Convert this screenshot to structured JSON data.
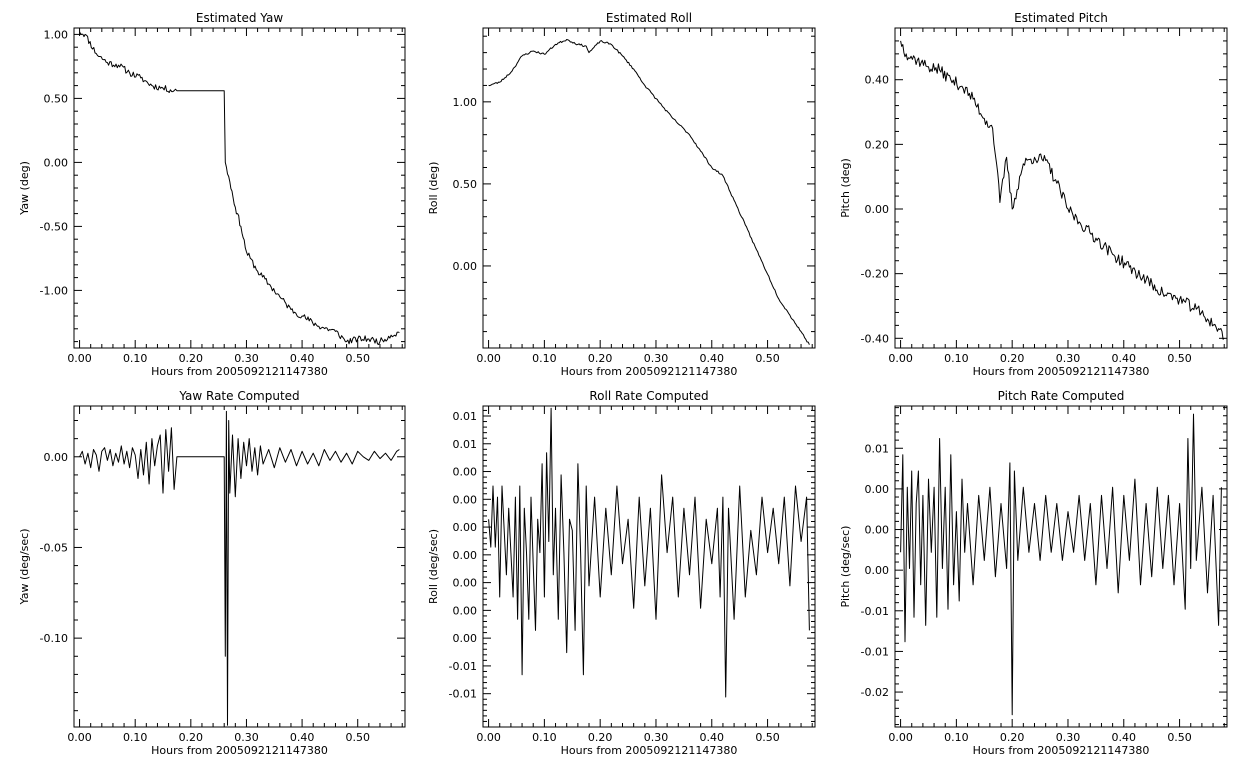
{
  "chart_data": [
    {
      "type": "line",
      "title": "Estimated Yaw",
      "xlabel": "Hours from 2005092121147380",
      "ylabel": "Yaw (deg)",
      "xlim": [
        -0.01,
        0.585
      ],
      "ylim": [
        -1.45,
        1.05
      ],
      "xticks": [
        0.0,
        0.1,
        0.2,
        0.3,
        0.4,
        0.5
      ],
      "xtick_labels": [
        "0.00",
        "0.10",
        "0.20",
        "0.30",
        "0.40",
        "0.50"
      ],
      "yticks": [
        1.0,
        0.5,
        0.0,
        -0.5,
        -1.0
      ],
      "ytick_labels": [
        "1.00",
        "0.50",
        "0.00",
        "-0.50",
        "-1.00"
      ],
      "noise": 0.025,
      "seed": 11,
      "series": [
        {
          "x": [
            0.0,
            0.01,
            0.03,
            0.05,
            0.07,
            0.09,
            0.11,
            0.13,
            0.15,
            0.17,
            0.175,
            0.26,
            0.262,
            0.27,
            0.28,
            0.29,
            0.3,
            0.32,
            0.34,
            0.36,
            0.38,
            0.4,
            0.43,
            0.46,
            0.48,
            0.5,
            0.52,
            0.54,
            0.56,
            0.575
          ],
          "y": [
            1.02,
            1.0,
            0.85,
            0.78,
            0.76,
            0.7,
            0.66,
            0.6,
            0.58,
            0.56,
            0.56,
            0.56,
            0.0,
            -0.15,
            -0.35,
            -0.5,
            -0.7,
            -0.85,
            -0.95,
            -1.05,
            -1.15,
            -1.2,
            -1.28,
            -1.32,
            -1.4,
            -1.38,
            -1.38,
            -1.4,
            -1.35,
            -1.33
          ]
        }
      ]
    },
    {
      "type": "line",
      "title": "Estimated Roll",
      "xlabel": "Hours from 2005092121147380",
      "ylabel": "Roll (deg)",
      "xlim": [
        -0.01,
        0.585
      ],
      "ylim": [
        -0.5,
        1.45
      ],
      "xticks": [
        0.0,
        0.1,
        0.2,
        0.3,
        0.4,
        0.5
      ],
      "xtick_labels": [
        "0.00",
        "0.10",
        "0.20",
        "0.30",
        "0.40",
        "0.50"
      ],
      "yticks": [
        1.0,
        0.5,
        0.0
      ],
      "ytick_labels": [
        "1.00",
        "0.50",
        "0.00"
      ],
      "noise": 0.006,
      "seed": 23,
      "series": [
        {
          "x": [
            0.0,
            0.02,
            0.04,
            0.06,
            0.08,
            0.1,
            0.12,
            0.14,
            0.16,
            0.175,
            0.18,
            0.2,
            0.22,
            0.24,
            0.26,
            0.28,
            0.3,
            0.33,
            0.36,
            0.38,
            0.4,
            0.42,
            0.44,
            0.46,
            0.48,
            0.5,
            0.52,
            0.54,
            0.56,
            0.575
          ],
          "y": [
            1.1,
            1.12,
            1.18,
            1.28,
            1.31,
            1.29,
            1.35,
            1.38,
            1.35,
            1.34,
            1.3,
            1.37,
            1.35,
            1.28,
            1.2,
            1.1,
            1.02,
            0.9,
            0.8,
            0.7,
            0.6,
            0.55,
            0.4,
            0.25,
            0.1,
            -0.05,
            -0.2,
            -0.3,
            -0.4,
            -0.48
          ]
        }
      ]
    },
    {
      "type": "line",
      "title": "Estimated Pitch",
      "xlabel": "Hours from 2005092121147380",
      "ylabel": "Pitch (deg)",
      "xlim": [
        -0.01,
        0.585
      ],
      "ylim": [
        -0.43,
        0.56
      ],
      "xticks": [
        0.0,
        0.1,
        0.2,
        0.3,
        0.4,
        0.5
      ],
      "xtick_labels": [
        "0.00",
        "0.10",
        "0.20",
        "0.30",
        "0.40",
        "0.50"
      ],
      "yticks": [
        0.4,
        0.2,
        0.0,
        -0.2,
        -0.4
      ],
      "ytick_labels": [
        "0.40",
        "0.20",
        "0.00",
        "-0.20",
        "-0.40"
      ],
      "noise": 0.018,
      "seed": 37,
      "series": [
        {
          "x": [
            0.0,
            0.01,
            0.03,
            0.05,
            0.07,
            0.09,
            0.11,
            0.13,
            0.15,
            0.165,
            0.172,
            0.178,
            0.19,
            0.2,
            0.22,
            0.24,
            0.26,
            0.28,
            0.3,
            0.32,
            0.35,
            0.38,
            0.41,
            0.44,
            0.47,
            0.5,
            0.53,
            0.55,
            0.57,
            0.58
          ],
          "y": [
            0.52,
            0.48,
            0.46,
            0.44,
            0.43,
            0.4,
            0.38,
            0.34,
            0.28,
            0.25,
            0.14,
            0.02,
            0.16,
            0.0,
            0.14,
            0.16,
            0.15,
            0.08,
            0.0,
            -0.04,
            -0.09,
            -0.14,
            -0.18,
            -0.22,
            -0.26,
            -0.28,
            -0.31,
            -0.34,
            -0.37,
            -0.4
          ]
        }
      ]
    },
    {
      "type": "line",
      "title": "Yaw Rate Computed",
      "xlabel": "Hours from 2005092121147380",
      "ylabel": "Yaw (deg/sec)",
      "xlim": [
        -0.01,
        0.585
      ],
      "ylim": [
        -0.149,
        0.028
      ],
      "xticks": [
        0.0,
        0.1,
        0.2,
        0.3,
        0.4,
        0.5
      ],
      "xtick_labels": [
        "0.00",
        "0.10",
        "0.20",
        "0.30",
        "0.40",
        "0.50"
      ],
      "yticks": [
        0.0,
        -0.05,
        -0.1
      ],
      "ytick_labels": [
        "0.00",
        "-0.05",
        "-0.10"
      ],
      "noise": 0.0,
      "seed": 41,
      "series": [
        {
          "x": [
            0.0,
            0.005,
            0.01,
            0.015,
            0.02,
            0.025,
            0.03,
            0.035,
            0.04,
            0.045,
            0.05,
            0.055,
            0.06,
            0.065,
            0.07,
            0.075,
            0.08,
            0.085,
            0.09,
            0.095,
            0.1,
            0.105,
            0.11,
            0.115,
            0.12,
            0.125,
            0.13,
            0.135,
            0.14,
            0.145,
            0.15,
            0.155,
            0.16,
            0.165,
            0.17,
            0.175,
            0.26,
            0.262,
            0.264,
            0.266,
            0.268,
            0.27,
            0.275,
            0.28,
            0.285,
            0.29,
            0.295,
            0.3,
            0.305,
            0.31,
            0.315,
            0.32,
            0.325,
            0.33,
            0.34,
            0.35,
            0.36,
            0.37,
            0.38,
            0.39,
            0.4,
            0.41,
            0.42,
            0.43,
            0.44,
            0.45,
            0.46,
            0.47,
            0.48,
            0.49,
            0.5,
            0.51,
            0.52,
            0.53,
            0.54,
            0.55,
            0.56,
            0.57,
            0.575
          ],
          "y": [
            0.0,
            0.003,
            -0.004,
            0.002,
            -0.006,
            0.004,
            0.001,
            -0.008,
            0.003,
            0.005,
            -0.002,
            0.004,
            -0.005,
            0.002,
            -0.003,
            0.006,
            -0.004,
            0.003,
            -0.006,
            0.005,
            0.001,
            -0.012,
            0.004,
            -0.01,
            0.008,
            -0.015,
            0.01,
            -0.005,
            0.006,
            0.012,
            -0.02,
            0.015,
            -0.008,
            0.016,
            -0.018,
            0.0,
            0.0,
            -0.11,
            0.025,
            -0.148,
            0.02,
            -0.02,
            0.012,
            -0.022,
            0.01,
            -0.012,
            0.008,
            -0.005,
            0.01,
            -0.008,
            0.005,
            -0.01,
            0.006,
            -0.004,
            0.004,
            -0.006,
            0.005,
            -0.003,
            0.004,
            -0.005,
            0.003,
            -0.004,
            0.002,
            -0.005,
            0.004,
            -0.002,
            0.003,
            -0.003,
            0.002,
            -0.004,
            0.003,
            0.0,
            -0.002,
            0.003,
            -0.001,
            0.002,
            -0.002,
            0.003,
            0.004
          ]
        }
      ]
    },
    {
      "type": "line",
      "title": "Roll Rate Computed",
      "xlabel": "Hours from 2005092121147380",
      "ylabel": "Roll (deg/sec)",
      "xlim": [
        -0.01,
        0.585
      ],
      "ylim": [
        -0.0177,
        0.0112
      ],
      "xticks": [
        0.0,
        0.1,
        0.2,
        0.3,
        0.4,
        0.5
      ],
      "xtick_labels": [
        "0.00",
        "0.10",
        "0.20",
        "0.30",
        "0.40",
        "0.50"
      ],
      "yticks": [
        0.0103,
        0.0078,
        0.0053,
        0.0028,
        0.0003,
        -0.0022,
        -0.0047,
        -0.0072,
        -0.0097,
        -0.0122,
        -0.0147
      ],
      "ytick_labels": [
        "0.01",
        "0.01",
        "0.00",
        "0.00",
        "0.00",
        "0.00",
        "0.00",
        "0.00",
        "0.00",
        "-0.01",
        "-0.01"
      ],
      "noise": 0.0,
      "seed": 53,
      "series": [
        {
          "x": [
            0.0,
            0.004,
            0.008,
            0.012,
            0.016,
            0.02,
            0.024,
            0.028,
            0.032,
            0.036,
            0.04,
            0.044,
            0.048,
            0.052,
            0.056,
            0.06,
            0.064,
            0.068,
            0.072,
            0.076,
            0.08,
            0.084,
            0.088,
            0.092,
            0.096,
            0.1,
            0.104,
            0.108,
            0.112,
            0.116,
            0.12,
            0.125,
            0.13,
            0.135,
            0.14,
            0.145,
            0.15,
            0.155,
            0.16,
            0.165,
            0.17,
            0.175,
            0.18,
            0.19,
            0.2,
            0.21,
            0.22,
            0.23,
            0.24,
            0.25,
            0.26,
            0.27,
            0.28,
            0.29,
            0.3,
            0.31,
            0.32,
            0.33,
            0.34,
            0.35,
            0.36,
            0.37,
            0.38,
            0.39,
            0.4,
            0.41,
            0.415,
            0.42,
            0.425,
            0.43,
            0.44,
            0.45,
            0.46,
            0.47,
            0.48,
            0.49,
            0.5,
            0.51,
            0.52,
            0.53,
            0.54,
            0.55,
            0.56,
            0.57,
            0.575
          ],
          "y": [
            0.001,
            -0.0015,
            0.004,
            -0.0015,
            0.003,
            -0.006,
            0.004,
            0.0,
            -0.004,
            0.002,
            -0.002,
            -0.006,
            0.003,
            -0.008,
            0.004,
            -0.013,
            0.002,
            -0.002,
            -0.008,
            0.003,
            -0.003,
            -0.009,
            0.001,
            -0.002,
            0.006,
            -0.006,
            0.007,
            -0.001,
            0.011,
            -0.004,
            0.002,
            -0.008,
            0.005,
            -0.002,
            -0.011,
            0.001,
            0.0,
            -0.009,
            0.006,
            -0.002,
            -0.013,
            0.004,
            -0.005,
            0.003,
            -0.006,
            0.002,
            -0.004,
            0.004,
            -0.003,
            0.001,
            -0.007,
            0.003,
            -0.005,
            0.002,
            -0.008,
            0.005,
            -0.002,
            0.003,
            -0.006,
            0.002,
            -0.004,
            0.003,
            -0.007,
            0.001,
            -0.003,
            0.002,
            -0.006,
            0.003,
            -0.015,
            0.002,
            -0.008,
            0.004,
            -0.006,
            0.0,
            -0.004,
            0.003,
            -0.002,
            0.002,
            -0.003,
            0.003,
            -0.005,
            0.004,
            -0.001,
            0.003,
            -0.009
          ]
        }
      ]
    },
    {
      "type": "line",
      "title": "Pitch Rate Computed",
      "xlabel": "Hours from 2005092121147380",
      "ylabel": "Pitch (deg/sec)",
      "xlim": [
        -0.01,
        0.585
      ],
      "ylim": [
        -0.0235,
        0.016
      ],
      "xticks": [
        0.0,
        0.1,
        0.2,
        0.3,
        0.4,
        0.5
      ],
      "xtick_labels": [
        "0.00",
        "0.10",
        "0.20",
        "0.30",
        "0.40",
        "0.50"
      ],
      "yticks": [
        0.0108,
        0.0058,
        0.0008,
        -0.0042,
        -0.0092,
        -0.0142,
        -0.0192
      ],
      "ytick_labels": [
        "0.01",
        "0.00",
        "0.00",
        "0.00",
        "-0.01",
        "-0.01",
        "-0.02"
      ],
      "noise": 0.0,
      "seed": 67,
      "series": [
        {
          "x": [
            0.0,
            0.004,
            0.008,
            0.012,
            0.016,
            0.02,
            0.024,
            0.028,
            0.032,
            0.036,
            0.04,
            0.045,
            0.05,
            0.055,
            0.06,
            0.065,
            0.07,
            0.075,
            0.08,
            0.085,
            0.09,
            0.095,
            0.1,
            0.105,
            0.11,
            0.115,
            0.12,
            0.13,
            0.14,
            0.15,
            0.16,
            0.17,
            0.18,
            0.19,
            0.196,
            0.2,
            0.204,
            0.21,
            0.22,
            0.23,
            0.24,
            0.25,
            0.26,
            0.27,
            0.28,
            0.29,
            0.3,
            0.31,
            0.32,
            0.33,
            0.34,
            0.35,
            0.36,
            0.37,
            0.38,
            0.39,
            0.4,
            0.41,
            0.42,
            0.43,
            0.44,
            0.45,
            0.46,
            0.47,
            0.48,
            0.49,
            0.5,
            0.51,
            0.515,
            0.52,
            0.525,
            0.53,
            0.54,
            0.55,
            0.56,
            0.57,
            0.575
          ],
          "y": [
            -0.002,
            0.01,
            -0.013,
            0.006,
            -0.004,
            0.008,
            -0.01,
            0.004,
            0.008,
            -0.006,
            0.005,
            -0.011,
            0.007,
            -0.002,
            0.006,
            -0.01,
            0.012,
            -0.004,
            0.006,
            -0.009,
            0.01,
            -0.006,
            0.003,
            -0.008,
            0.007,
            -0.002,
            0.004,
            -0.006,
            0.005,
            -0.003,
            0.006,
            -0.005,
            0.004,
            -0.004,
            0.009,
            -0.022,
            0.008,
            -0.003,
            0.006,
            -0.002,
            0.004,
            -0.003,
            0.005,
            -0.002,
            0.004,
            -0.003,
            0.003,
            -0.002,
            0.005,
            -0.003,
            0.004,
            -0.006,
            0.005,
            -0.004,
            0.006,
            -0.007,
            0.005,
            -0.003,
            0.007,
            -0.006,
            0.004,
            -0.005,
            0.006,
            -0.004,
            0.005,
            -0.006,
            0.004,
            -0.009,
            0.012,
            -0.004,
            0.015,
            -0.003,
            0.006,
            -0.007,
            0.005,
            -0.011,
            0.006
          ]
        }
      ]
    }
  ]
}
